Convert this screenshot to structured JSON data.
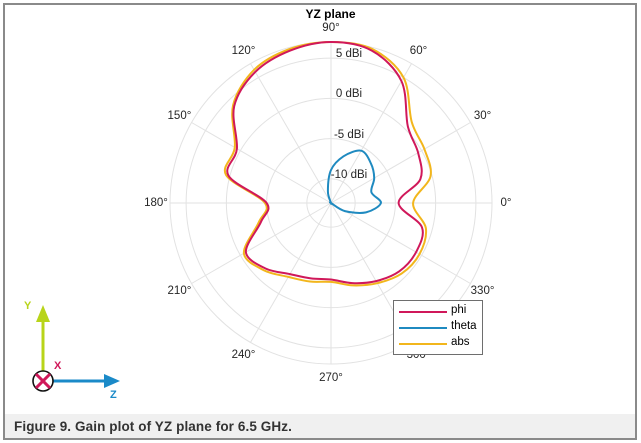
{
  "title": "YZ plane",
  "caption": "Figure 9.  Gain plot of YZ plane for 6.5 GHz.",
  "angle_labels": [
    {
      "text": "0°",
      "deg": 0
    },
    {
      "text": "30°",
      "deg": 30
    },
    {
      "text": "60°",
      "deg": 60
    },
    {
      "text": "90°",
      "deg": 90
    },
    {
      "text": "120°",
      "deg": 120
    },
    {
      "text": "150°",
      "deg": 150
    },
    {
      "text": "180°",
      "deg": 180
    },
    {
      "text": "210°",
      "deg": 210
    },
    {
      "text": "240°",
      "deg": 240
    },
    {
      "text": "270°",
      "deg": 270
    },
    {
      "text": "300°",
      "deg": 300
    },
    {
      "text": "330°",
      "deg": 330
    }
  ],
  "radial_labels": [
    {
      "text": "5 dBi",
      "value": 5
    },
    {
      "text": "0 dBi",
      "value": 0
    },
    {
      "text": "-5 dBi",
      "value": -5
    },
    {
      "text": "-10 dBi",
      "value": -10
    }
  ],
  "legend": {
    "items": [
      {
        "label": "phi",
        "color": "#d0185a"
      },
      {
        "label": "theta",
        "color": "#1f8ac0"
      },
      {
        "label": "abs",
        "color": "#f2b61c"
      }
    ]
  },
  "axes_icon": {
    "y_label": "Y",
    "x_label": "X",
    "z_label": "Z",
    "y_color": "#b8d41a",
    "z_color": "#1a8ac8",
    "x_color": "#d0185a"
  },
  "chart_data": {
    "type": "polar-line",
    "title": "YZ plane",
    "radial_unit": "dBi",
    "rlim": [
      -13,
      7
    ],
    "radial_ticks": [
      -10,
      -5,
      0,
      5
    ],
    "angle_ticks_deg": [
      0,
      30,
      60,
      90,
      120,
      150,
      180,
      210,
      240,
      270,
      300,
      330
    ],
    "grid": true,
    "legend_position": "lower right",
    "angles_deg": [
      0,
      15,
      30,
      45,
      60,
      75,
      90,
      105,
      120,
      135,
      150,
      165,
      180,
      195,
      210,
      225,
      240,
      255,
      270,
      285,
      300,
      315,
      330,
      345
    ],
    "series": [
      {
        "name": "phi",
        "color": "#d0185a",
        "values": [
          -4.6,
          -1.5,
          -0.5,
          0.5,
          4.5,
          6.6,
          7.0,
          6.6,
          5.8,
          4.0,
          0.5,
          0.2,
          -5.0,
          -4.0,
          -0.8,
          -1.5,
          -2.8,
          -3.3,
          -3.5,
          -2.7,
          -1.8,
          -1.0,
          -0.8,
          -1.3
        ]
      },
      {
        "name": "theta",
        "color": "#1f8ac0",
        "values": [
          -6.8,
          -7.8,
          -6.8,
          -6.0,
          -5.5,
          -7.0,
          -8.9,
          -11.5,
          -13,
          -13,
          -13,
          -13,
          -13,
          -13,
          -13,
          -13,
          -13,
          -13,
          -13,
          -13,
          -13,
          -13,
          -11.0,
          -8.5
        ]
      },
      {
        "name": "abs",
        "color": "#f2b61c",
        "values": [
          -2.8,
          -0.2,
          0.4,
          1.2,
          5.0,
          6.8,
          7.0,
          6.8,
          6.1,
          4.2,
          0.8,
          0.5,
          -4.8,
          -3.7,
          -0.5,
          -1.2,
          -2.4,
          -2.9,
          -3.2,
          -2.4,
          -1.5,
          -0.6,
          -0.3,
          -0.8
        ]
      }
    ]
  }
}
